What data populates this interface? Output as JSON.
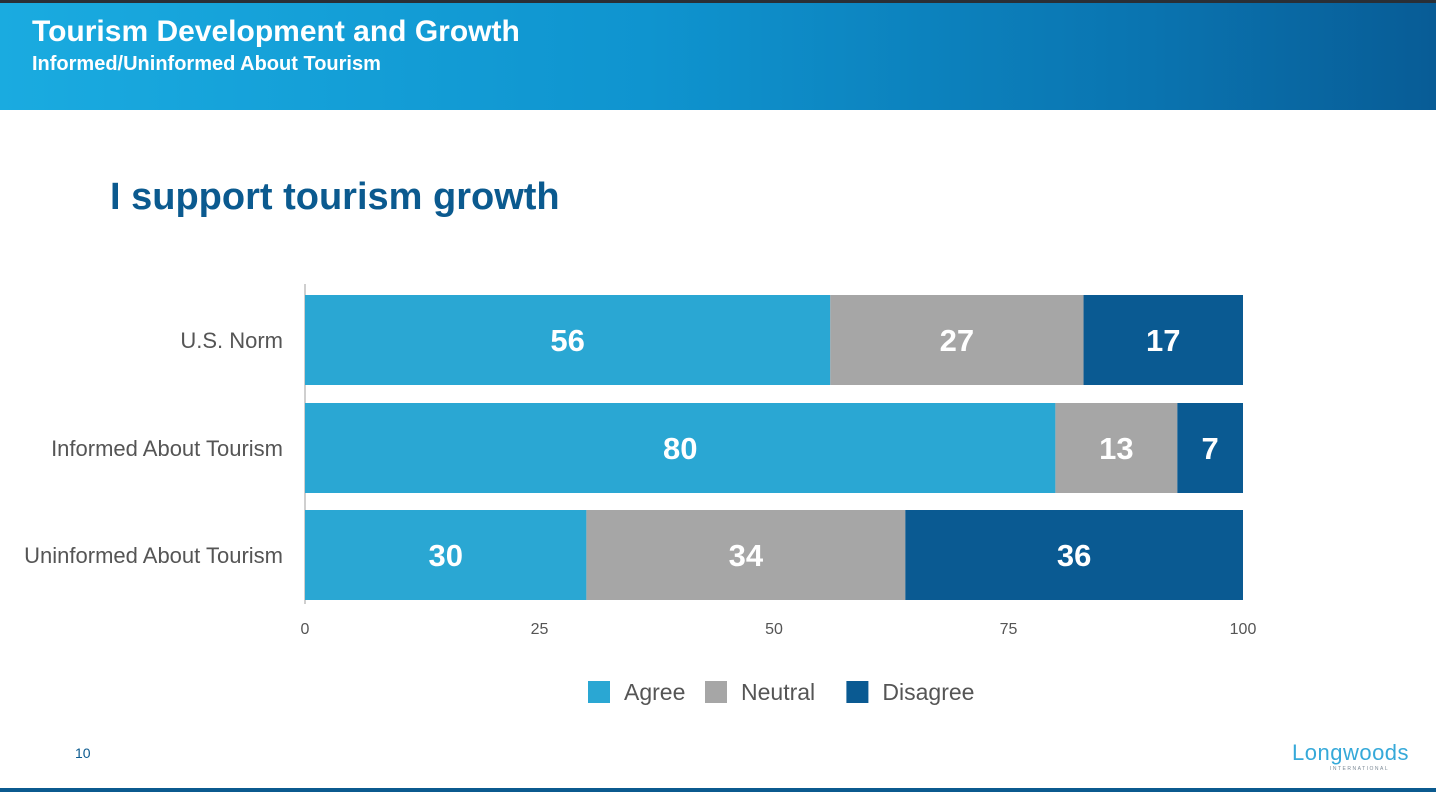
{
  "header": {
    "title": "Tourism Development and Growth",
    "subtitle": "Informed/Uninformed About Tourism"
  },
  "slide": {
    "title": "I support tourism growth",
    "page_number": "10"
  },
  "logo": {
    "name": "Longwoods",
    "tagline": "INTERNATIONAL"
  },
  "colors": {
    "agree": "#2aa7d3",
    "neutral": "#a6a6a6",
    "disagree": "#0a5a92"
  },
  "chart_data": {
    "type": "bar",
    "orientation": "horizontal",
    "stacked": true,
    "categories": [
      "U.S. Norm",
      "Informed About Tourism",
      "Uninformed About Tourism"
    ],
    "series": [
      {
        "name": "Agree",
        "color": "#2aa7d3",
        "values": [
          56,
          80,
          30
        ]
      },
      {
        "name": "Neutral",
        "color": "#a6a6a6",
        "values": [
          27,
          13,
          34
        ]
      },
      {
        "name": "Disagree",
        "color": "#0a5a92",
        "values": [
          17,
          7,
          36
        ]
      }
    ],
    "xlim": [
      0,
      100
    ],
    "xticks": [
      "0",
      "25",
      "50",
      "75",
      "100"
    ],
    "grid": false,
    "legend": "bottom",
    "data_labels": true
  }
}
